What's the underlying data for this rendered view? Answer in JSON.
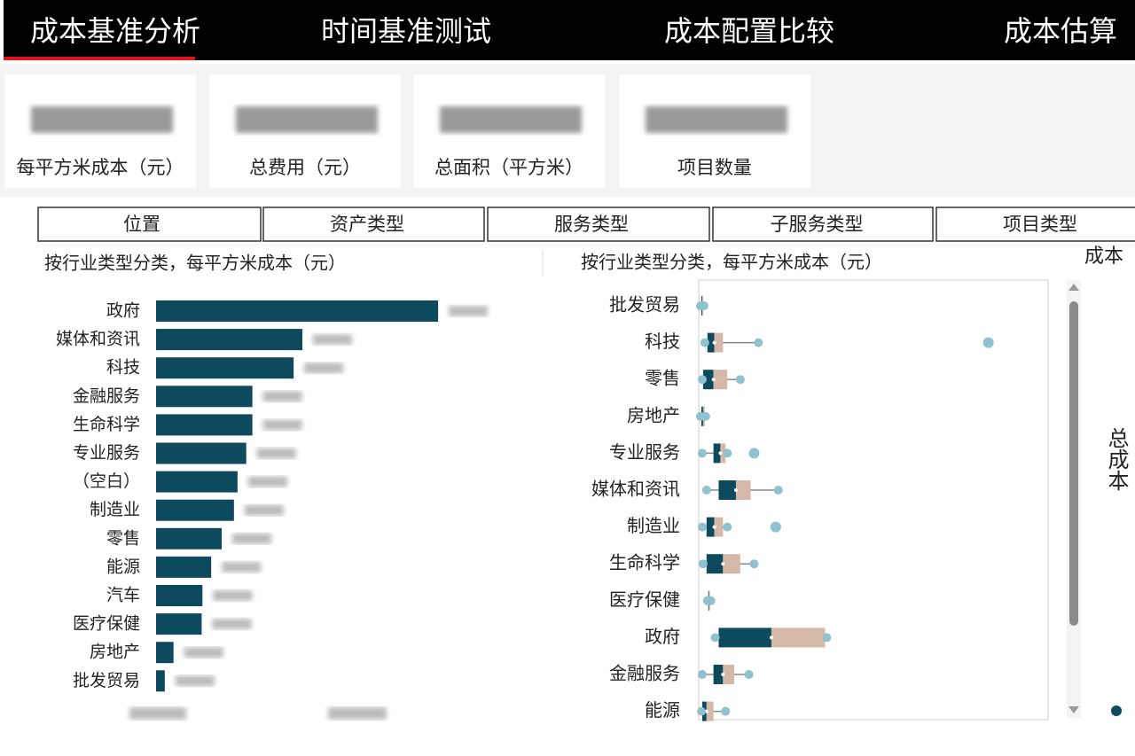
{
  "nav": {
    "tabs": [
      "成本基准分析",
      "时间基准测试",
      "成本配置比较",
      "成本估算"
    ]
  },
  "kpis": [
    "每平方米成本（元）",
    "总费用（元）",
    "总面积（平方米）",
    "项目数量"
  ],
  "filters": [
    "位置",
    "资产类型",
    "服务类型",
    "子服务类型",
    "项目类型"
  ],
  "side_labels": [
    "成本",
    "总成本"
  ],
  "chart_data": [
    {
      "type": "bar",
      "title": "按行业类型分类，每平方米成本（元）",
      "orientation": "horizontal",
      "color": "#0d4a5e",
      "categories": [
        "政府",
        "媒体和资讯",
        "科技",
        "金融服务",
        "生命科学",
        "专业服务",
        "（空白）",
        "制造业",
        "零售",
        "能源",
        "汽车",
        "医疗保健",
        "房地产",
        "批发贸易"
      ],
      "values": [
        14230,
        7380,
        6940,
        4860,
        4860,
        4550,
        4110,
        3930,
        3310,
        2780,
        2340,
        2300,
        880,
        440
      ],
      "xlim": [
        0,
        17000
      ]
    },
    {
      "type": "box",
      "title": "按行业类型分类，每平方米成本（元）",
      "colors": {
        "lower": "#0d4a5e",
        "upper": "#d4b8a8",
        "point": "#8fc1cf"
      },
      "categories": [
        "批发贸易",
        "科技",
        "零售",
        "房地产",
        "专业服务",
        "媒体和资讯",
        "制造业",
        "生命科学",
        "医疗保健",
        "政府",
        "金融服务",
        "能源"
      ],
      "min": [
        0,
        500,
        200,
        0,
        200,
        700,
        200,
        300,
        800,
        1700,
        200,
        100
      ],
      "q1": [
        100,
        800,
        300,
        100,
        1500,
        2100,
        700,
        700,
        900,
        2100,
        1500,
        200
      ],
      "median": [
        200,
        1600,
        1500,
        300,
        2300,
        4100,
        1600,
        2600,
        1000,
        8200,
        2600,
        700
      ],
      "q3": [
        300,
        2600,
        3100,
        500,
        2900,
        5800,
        2600,
        4600,
        1100,
        14400,
        3900,
        1500
      ],
      "max": [
        400,
        6700,
        4600,
        600,
        3100,
        9000,
        3100,
        6200,
        1200,
        14600,
        5600,
        2900
      ],
      "outliers": [
        [],
        [
          33300
        ],
        [],
        [],
        [
          6200
        ],
        [],
        [
          8700
        ],
        [],
        [],
        [],
        [],
        []
      ],
      "xlim": [
        0,
        40000
      ]
    }
  ]
}
